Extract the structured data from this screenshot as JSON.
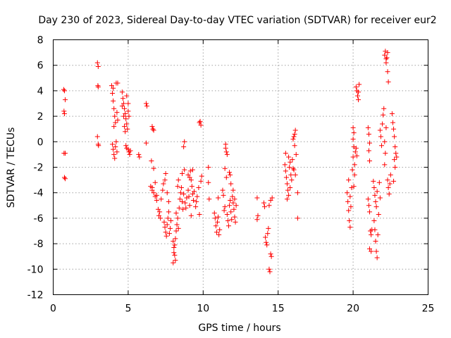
{
  "chart_data": {
    "type": "scatter",
    "title": "Day 230 of 2023, Sidereal Day-to-day VTEC variation (SDTVAR) for receiver eur2",
    "xlabel": "GPS time / hours",
    "ylabel": "SDTVAR / TECUs",
    "xlim": [
      0,
      25
    ],
    "ylim": [
      -12,
      8
    ],
    "x_ticks": [
      0,
      5,
      10,
      15,
      20,
      25
    ],
    "y_ticks": [
      -12,
      -10,
      -8,
      -6,
      -4,
      -2,
      0,
      2,
      4,
      6,
      8
    ],
    "x_tick_labels": [
      "0",
      "5",
      "10",
      "15",
      "20",
      "25"
    ],
    "y_tick_labels": [
      "-12",
      "-10",
      "-8",
      "-6",
      "-4",
      "-2",
      "0",
      "2",
      "4",
      "6",
      "8"
    ],
    "grid": true,
    "marker": "plus",
    "color": "#ff0000",
    "series": [
      {
        "name": "SDTVAR",
        "points": [
          [
            0.7,
            4.1
          ],
          [
            0.75,
            4.0
          ],
          [
            0.8,
            3.3
          ],
          [
            0.72,
            2.4
          ],
          [
            0.75,
            2.2
          ],
          [
            0.8,
            -0.9
          ],
          [
            0.72,
            -0.9
          ],
          [
            0.75,
            -2.8
          ],
          [
            0.8,
            -2.9
          ],
          [
            2.95,
            6.2
          ],
          [
            3.0,
            5.9
          ],
          [
            2.98,
            4.4
          ],
          [
            3.0,
            4.3
          ],
          [
            2.95,
            0.4
          ],
          [
            3.0,
            -0.2
          ],
          [
            3.02,
            -0.3
          ],
          [
            3.9,
            4.4
          ],
          [
            4.0,
            4.2
          ],
          [
            3.95,
            3.8
          ],
          [
            4.0,
            3.2
          ],
          [
            4.05,
            2.6
          ],
          [
            4.1,
            2.0
          ],
          [
            4.15,
            1.5
          ],
          [
            4.05,
            1.2
          ],
          [
            4.2,
            4.6
          ],
          [
            4.3,
            4.6
          ],
          [
            4.25,
            2.3
          ],
          [
            4.3,
            1.7
          ],
          [
            3.95,
            -0.2
          ],
          [
            4.0,
            -0.6
          ],
          [
            4.05,
            -1.0
          ],
          [
            4.1,
            -1.3
          ],
          [
            4.15,
            -0.4
          ],
          [
            4.2,
            0.0
          ],
          [
            4.25,
            -0.8
          ],
          [
            4.6,
            3.9
          ],
          [
            4.65,
            3.4
          ],
          [
            4.7,
            3.0
          ],
          [
            4.75,
            2.6
          ],
          [
            4.8,
            2.2
          ],
          [
            4.85,
            1.8
          ],
          [
            4.9,
            1.4
          ],
          [
            4.95,
            1.0
          ],
          [
            5.0,
            2.4
          ],
          [
            5.05,
            2.0
          ],
          [
            4.7,
            2.0
          ],
          [
            4.75,
            1.2
          ],
          [
            4.8,
            0.8
          ],
          [
            4.6,
            2.8
          ],
          [
            4.9,
            3.6
          ],
          [
            5.0,
            3.0
          ],
          [
            4.85,
            -0.3
          ],
          [
            4.9,
            -0.5
          ],
          [
            5.0,
            -0.6
          ],
          [
            5.05,
            -0.8
          ],
          [
            5.1,
            -1.0
          ],
          [
            5.15,
            -0.7
          ],
          [
            5.7,
            -1.0
          ],
          [
            5.75,
            -1.2
          ],
          [
            6.2,
            3.0
          ],
          [
            6.25,
            2.8
          ],
          [
            6.2,
            -0.1
          ],
          [
            6.6,
            1.2
          ],
          [
            6.65,
            1.0
          ],
          [
            6.7,
            0.9
          ],
          [
            6.55,
            -1.5
          ],
          [
            6.7,
            -2.1
          ],
          [
            6.6,
            -3.6
          ],
          [
            6.7,
            -4.0
          ],
          [
            6.8,
            -4.3
          ],
          [
            6.9,
            -4.6
          ],
          [
            6.5,
            -3.5
          ],
          [
            6.6,
            -3.8
          ],
          [
            6.8,
            -3.2
          ],
          [
            6.9,
            -4.2
          ],
          [
            7.0,
            -5.3
          ],
          [
            7.05,
            -5.8
          ],
          [
            7.1,
            -5.5
          ],
          [
            7.15,
            -6.0
          ],
          [
            7.2,
            -4.5
          ],
          [
            7.3,
            -3.8
          ],
          [
            7.35,
            -3.3
          ],
          [
            7.4,
            -6.3
          ],
          [
            7.45,
            -6.7
          ],
          [
            7.5,
            -7.1
          ],
          [
            7.55,
            -7.4
          ],
          [
            7.6,
            -6.5
          ],
          [
            7.65,
            -6.0
          ],
          [
            7.7,
            -5.5
          ],
          [
            7.75,
            -7.2
          ],
          [
            7.5,
            -2.5
          ],
          [
            7.6,
            -4.0
          ],
          [
            7.7,
            -4.7
          ],
          [
            7.45,
            -3.0
          ],
          [
            7.8,
            -6.8
          ],
          [
            7.85,
            -6.2
          ],
          [
            8.0,
            -7.8
          ],
          [
            8.05,
            -8.3
          ],
          [
            8.1,
            -8.9
          ],
          [
            8.15,
            -9.3
          ],
          [
            8.0,
            -9.5
          ],
          [
            8.05,
            -8.7
          ],
          [
            8.1,
            -8.1
          ],
          [
            8.15,
            -7.6
          ],
          [
            8.2,
            -7.0
          ],
          [
            8.25,
            -6.5
          ],
          [
            8.3,
            -6.0
          ],
          [
            8.35,
            -6.8
          ],
          [
            8.2,
            -5.6
          ],
          [
            8.3,
            -3.5
          ],
          [
            8.35,
            -3.0
          ],
          [
            8.4,
            -5.2
          ],
          [
            8.45,
            -4.5
          ],
          [
            8.5,
            -4.0
          ],
          [
            8.55,
            -3.6
          ],
          [
            8.6,
            -4.7
          ],
          [
            8.65,
            -5.3
          ],
          [
            8.7,
            -4.1
          ],
          [
            8.7,
            -0.4
          ],
          [
            8.75,
            0.0
          ],
          [
            8.75,
            -2.2
          ],
          [
            8.6,
            -2.5
          ],
          [
            8.8,
            -4.8
          ],
          [
            8.85,
            -5.2
          ],
          [
            8.9,
            -4.4
          ],
          [
            9.0,
            -3.8
          ],
          [
            9.05,
            -4.3
          ],
          [
            9.1,
            -2.8
          ],
          [
            9.15,
            -2.3
          ],
          [
            9.2,
            -3.0
          ],
          [
            9.25,
            -3.5
          ],
          [
            9.3,
            -4.1
          ],
          [
            9.35,
            -4.6
          ],
          [
            9.4,
            -3.9
          ],
          [
            9.0,
            -2.6
          ],
          [
            9.1,
            -5.0
          ],
          [
            9.2,
            -5.8
          ],
          [
            9.3,
            -2.2
          ],
          [
            9.5,
            -5.1
          ],
          [
            9.55,
            -4.7
          ],
          [
            9.6,
            -4.3
          ],
          [
            9.7,
            -3.6
          ],
          [
            9.75,
            -5.7
          ],
          [
            9.8,
            1.6
          ],
          [
            9.85,
            1.3
          ],
          [
            9.75,
            1.5
          ],
          [
            9.9,
            -2.7
          ],
          [
            9.85,
            -3.1
          ],
          [
            10.35,
            -2.0
          ],
          [
            10.4,
            -4.5
          ],
          [
            10.35,
            -3.2
          ],
          [
            10.75,
            -5.6
          ],
          [
            10.8,
            -6.0
          ],
          [
            10.85,
            -6.6
          ],
          [
            10.9,
            -7.1
          ],
          [
            10.95,
            -6.3
          ],
          [
            11.0,
            -5.9
          ],
          [
            11.05,
            -7.3
          ],
          [
            11.1,
            -6.9
          ],
          [
            11.0,
            -4.4
          ],
          [
            11.3,
            -3.8
          ],
          [
            11.35,
            -4.2
          ],
          [
            11.4,
            -5.4
          ],
          [
            11.45,
            -5.1
          ],
          [
            11.5,
            -0.5
          ],
          [
            11.55,
            -0.8
          ],
          [
            11.5,
            -0.2
          ],
          [
            11.6,
            -1.0
          ],
          [
            11.45,
            -2.1
          ],
          [
            11.55,
            -2.8
          ],
          [
            11.6,
            -5.7
          ],
          [
            11.65,
            -6.2
          ],
          [
            11.7,
            -6.6
          ],
          [
            11.75,
            -5.0
          ],
          [
            11.8,
            -4.6
          ],
          [
            11.85,
            -5.5
          ],
          [
            11.9,
            -6.1
          ],
          [
            11.75,
            -2.4
          ],
          [
            11.8,
            -2.6
          ],
          [
            11.85,
            -3.3
          ],
          [
            11.95,
            -4.3
          ],
          [
            12.0,
            -4.8
          ],
          [
            12.05,
            -5.3
          ],
          [
            12.1,
            -5.9
          ],
          [
            12.15,
            -6.3
          ],
          [
            12.0,
            -3.8
          ],
          [
            12.1,
            -4.5
          ],
          [
            12.2,
            -5.0
          ],
          [
            13.6,
            -4.4
          ],
          [
            13.65,
            -5.8
          ],
          [
            13.6,
            -6.1
          ],
          [
            14.05,
            -4.8
          ],
          [
            14.1,
            -5.1
          ],
          [
            14.15,
            -7.5
          ],
          [
            14.2,
            -7.9
          ],
          [
            14.25,
            -8.1
          ],
          [
            14.3,
            -7.2
          ],
          [
            14.35,
            -6.8
          ],
          [
            14.4,
            -10.0
          ],
          [
            14.45,
            -10.2
          ],
          [
            14.5,
            -8.8
          ],
          [
            14.55,
            -9.0
          ],
          [
            14.4,
            -5.0
          ],
          [
            14.5,
            -4.6
          ],
          [
            14.6,
            -4.4
          ],
          [
            15.45,
            -1.8
          ],
          [
            15.5,
            -2.3
          ],
          [
            15.55,
            -2.8
          ],
          [
            15.6,
            -3.3
          ],
          [
            15.65,
            -3.8
          ],
          [
            15.7,
            -4.2
          ],
          [
            15.75,
            -2.0
          ],
          [
            15.8,
            -1.6
          ],
          [
            15.85,
            -2.6
          ],
          [
            15.9,
            -3.0
          ],
          [
            15.95,
            -1.4
          ],
          [
            16.0,
            -2.1
          ],
          [
            15.5,
            -0.9
          ],
          [
            15.6,
            -4.5
          ],
          [
            15.7,
            -1.2
          ],
          [
            15.8,
            -3.6
          ],
          [
            16.0,
            0.2
          ],
          [
            16.05,
            0.4
          ],
          [
            16.1,
            0.6
          ],
          [
            16.15,
            0.9
          ],
          [
            16.1,
            -0.3
          ],
          [
            16.05,
            -2.2
          ],
          [
            16.15,
            -2.6
          ],
          [
            16.2,
            -1.0
          ],
          [
            16.3,
            -4.0
          ],
          [
            16.3,
            -6.0
          ],
          [
            19.6,
            -4.0
          ],
          [
            19.65,
            -4.7
          ],
          [
            19.7,
            -5.4
          ],
          [
            19.75,
            -6.2
          ],
          [
            19.8,
            -6.7
          ],
          [
            19.85,
            -5.1
          ],
          [
            19.9,
            -3.6
          ],
          [
            19.95,
            -2.2
          ],
          [
            19.7,
            -3.0
          ],
          [
            19.8,
            -4.3
          ],
          [
            20.0,
            -1.2
          ],
          [
            20.0,
            1.1
          ],
          [
            20.05,
            0.7
          ],
          [
            20.0,
            0.2
          ],
          [
            20.05,
            -0.4
          ],
          [
            20.1,
            -1.8
          ],
          [
            20.15,
            -0.8
          ],
          [
            20.2,
            -0.5
          ],
          [
            20.25,
            -1.1
          ],
          [
            20.1,
            -2.6
          ],
          [
            20.05,
            -3.5
          ],
          [
            20.2,
            4.3
          ],
          [
            20.25,
            4.0
          ],
          [
            20.3,
            3.6
          ],
          [
            20.35,
            3.3
          ],
          [
            20.4,
            4.5
          ],
          [
            20.35,
            3.9
          ],
          [
            21.0,
            1.1
          ],
          [
            21.05,
            0.6
          ],
          [
            21.1,
            -0.1
          ],
          [
            21.05,
            -0.7
          ],
          [
            21.1,
            -1.5
          ],
          [
            21.0,
            -4.5
          ],
          [
            21.05,
            -5.0
          ],
          [
            21.1,
            -5.5
          ],
          [
            21.15,
            -7.0
          ],
          [
            21.2,
            -7.3
          ],
          [
            21.25,
            -6.9
          ],
          [
            21.1,
            -8.4
          ],
          [
            21.2,
            -8.6
          ],
          [
            21.35,
            -3.1
          ],
          [
            21.4,
            -3.6
          ],
          [
            21.45,
            -4.2
          ],
          [
            21.5,
            -4.7
          ],
          [
            21.55,
            -5.1
          ],
          [
            21.6,
            -3.9
          ],
          [
            21.4,
            -6.2
          ],
          [
            21.45,
            -6.9
          ],
          [
            21.5,
            -7.8
          ],
          [
            21.55,
            -8.6
          ],
          [
            21.6,
            -9.1
          ],
          [
            21.65,
            -7.3
          ],
          [
            21.7,
            -5.7
          ],
          [
            21.75,
            -3.2
          ],
          [
            21.8,
            -4.4
          ],
          [
            21.8,
            0.9
          ],
          [
            21.85,
            0.4
          ],
          [
            21.9,
            -0.3
          ],
          [
            21.95,
            1.4
          ],
          [
            22.0,
            2.1
          ],
          [
            22.05,
            2.6
          ],
          [
            22.1,
            0.0
          ],
          [
            22.15,
            -0.9
          ],
          [
            22.1,
            -1.8
          ],
          [
            22.2,
            1.1
          ],
          [
            22.1,
            6.8
          ],
          [
            22.15,
            7.1
          ],
          [
            22.2,
            6.5
          ],
          [
            22.25,
            6.6
          ],
          [
            22.3,
            5.5
          ],
          [
            22.35,
            4.7
          ],
          [
            22.2,
            6.2
          ],
          [
            22.3,
            7.0
          ],
          [
            22.3,
            -3.0
          ],
          [
            22.35,
            -3.6
          ],
          [
            22.4,
            -4.1
          ],
          [
            22.45,
            -3.3
          ],
          [
            22.5,
            -2.6
          ],
          [
            22.6,
            2.2
          ],
          [
            22.65,
            1.5
          ],
          [
            22.7,
            1.0
          ],
          [
            22.75,
            0.4
          ],
          [
            22.8,
            -0.4
          ],
          [
            22.85,
            -0.9
          ],
          [
            22.75,
            -1.4
          ],
          [
            22.8,
            -2.0
          ],
          [
            22.7,
            -3.1
          ],
          [
            22.9,
            -1.2
          ]
        ]
      }
    ]
  }
}
